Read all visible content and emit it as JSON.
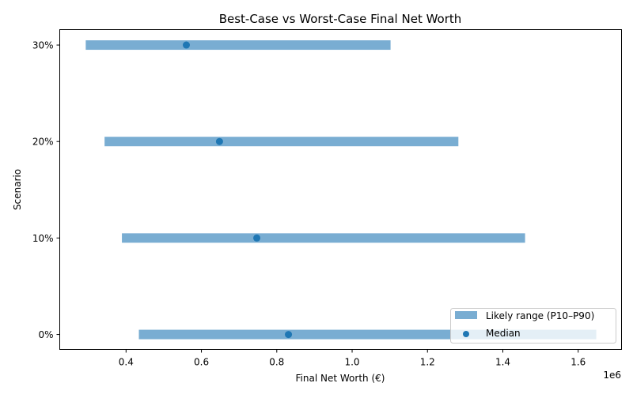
{
  "chart_data": {
    "type": "range-bar",
    "orientation": "horizontal",
    "title": "Best-Case vs Worst-Case Final Net Worth",
    "xlabel": "Final Net Worth (€)",
    "ylabel": "Scenario",
    "x_offset_label": "1e6",
    "xlim": [
      224000,
      1715000
    ],
    "ylim": [
      -0.155,
      3.16
    ],
    "xticks": [
      400000,
      600000,
      800000,
      1000000,
      1200000,
      1400000,
      1600000
    ],
    "xtick_labels": [
      "0.4",
      "0.6",
      "0.8",
      "1.0",
      "1.2",
      "1.4",
      "1.6"
    ],
    "categories": [
      "0%",
      "10%",
      "20%",
      "30%"
    ],
    "series": [
      {
        "name": "Likely range (P10–P90)",
        "kind": "range",
        "color": "#1f77b4",
        "alpha": 0.6,
        "low": [
          434000,
          389000,
          343000,
          293000
        ],
        "high": [
          1648000,
          1459000,
          1282000,
          1102000
        ]
      },
      {
        "name": "Median",
        "kind": "scatter",
        "color": "#1f77b4",
        "values": [
          831000,
          747000,
          648000,
          560000
        ]
      }
    ],
    "legend_position": "lower right",
    "grid": false
  }
}
